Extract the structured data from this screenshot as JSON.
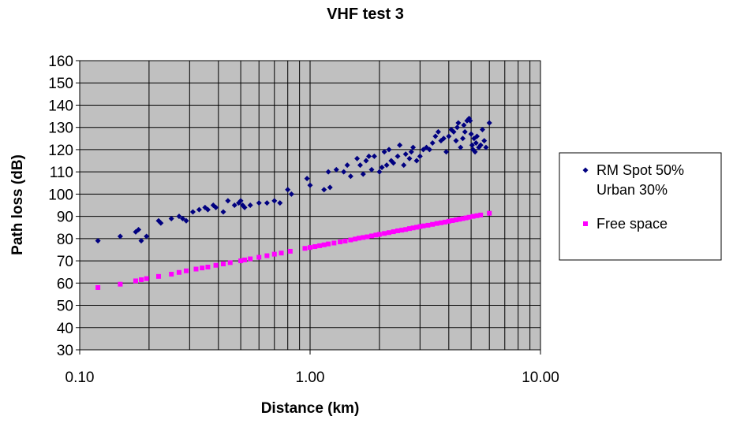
{
  "chart_data": {
    "type": "scatter",
    "title": "VHF test 3",
    "xlabel": "Distance (km)",
    "ylabel": "Path loss (dB)",
    "x_scale": "log",
    "xlim": [
      0.1,
      10
    ],
    "ylim": [
      30,
      160
    ],
    "x_ticks": [
      "0.10",
      "1.00",
      "10.00"
    ],
    "y_ticks": [
      "30",
      "40",
      "50",
      "60",
      "70",
      "80",
      "90",
      "100",
      "110",
      "120",
      "130",
      "140",
      "150",
      "160"
    ],
    "grid": true,
    "plot_background": "#c0c0c0",
    "legend_position": "right",
    "series": [
      {
        "name": "RM Spot 50% Urban 30%",
        "legend_lines": [
          "RM Spot 50%",
          "Urban 30%"
        ],
        "color": "#000080",
        "marker": "diamond",
        "points": [
          [
            0.12,
            79
          ],
          [
            0.15,
            81
          ],
          [
            0.175,
            83
          ],
          [
            0.18,
            84
          ],
          [
            0.185,
            79
          ],
          [
            0.195,
            81
          ],
          [
            0.22,
            88
          ],
          [
            0.225,
            87
          ],
          [
            0.25,
            89
          ],
          [
            0.27,
            90
          ],
          [
            0.28,
            89
          ],
          [
            0.29,
            88
          ],
          [
            0.31,
            92
          ],
          [
            0.33,
            93
          ],
          [
            0.35,
            94
          ],
          [
            0.36,
            93
          ],
          [
            0.38,
            95
          ],
          [
            0.39,
            94
          ],
          [
            0.42,
            92
          ],
          [
            0.44,
            97
          ],
          [
            0.47,
            95
          ],
          [
            0.49,
            96
          ],
          [
            0.5,
            97
          ],
          [
            0.51,
            95
          ],
          [
            0.52,
            94
          ],
          [
            0.55,
            95
          ],
          [
            0.6,
            96
          ],
          [
            0.65,
            96
          ],
          [
            0.7,
            97
          ],
          [
            0.74,
            96
          ],
          [
            0.8,
            102
          ],
          [
            0.83,
            100
          ],
          [
            0.97,
            107
          ],
          [
            1.0,
            104
          ],
          [
            1.15,
            102
          ],
          [
            1.2,
            110
          ],
          [
            1.22,
            103
          ],
          [
            1.3,
            111
          ],
          [
            1.4,
            110
          ],
          [
            1.45,
            113
          ],
          [
            1.5,
            108
          ],
          [
            1.6,
            116
          ],
          [
            1.65,
            113
          ],
          [
            1.7,
            109
          ],
          [
            1.75,
            115
          ],
          [
            1.8,
            117
          ],
          [
            1.85,
            111
          ],
          [
            1.9,
            117
          ],
          [
            2.0,
            110
          ],
          [
            2.05,
            112
          ],
          [
            2.1,
            119
          ],
          [
            2.15,
            113
          ],
          [
            2.2,
            120
          ],
          [
            2.25,
            115
          ],
          [
            2.3,
            114
          ],
          [
            2.4,
            117
          ],
          [
            2.45,
            122
          ],
          [
            2.55,
            113
          ],
          [
            2.6,
            118
          ],
          [
            2.7,
            116
          ],
          [
            2.75,
            119
          ],
          [
            2.8,
            121
          ],
          [
            2.9,
            115
          ],
          [
            3.0,
            117
          ],
          [
            3.1,
            120
          ],
          [
            3.2,
            121
          ],
          [
            3.3,
            120
          ],
          [
            3.4,
            123
          ],
          [
            3.5,
            126
          ],
          [
            3.6,
            128
          ],
          [
            3.7,
            124
          ],
          [
            3.8,
            125
          ],
          [
            3.9,
            119
          ],
          [
            4.0,
            126
          ],
          [
            4.1,
            129
          ],
          [
            4.2,
            128
          ],
          [
            4.3,
            124
          ],
          [
            4.35,
            130
          ],
          [
            4.4,
            132
          ],
          [
            4.5,
            121
          ],
          [
            4.6,
            125
          ],
          [
            4.65,
            131
          ],
          [
            4.7,
            128
          ],
          [
            4.8,
            133
          ],
          [
            4.9,
            134
          ],
          [
            4.95,
            133
          ],
          [
            5.0,
            127
          ],
          [
            5.05,
            122
          ],
          [
            5.1,
            120
          ],
          [
            5.15,
            125
          ],
          [
            5.2,
            119
          ],
          [
            5.25,
            123
          ],
          [
            5.3,
            126
          ],
          [
            5.4,
            121
          ],
          [
            5.5,
            122
          ],
          [
            5.6,
            129
          ],
          [
            5.7,
            124
          ],
          [
            5.8,
            121
          ],
          [
            6.0,
            132
          ]
        ]
      },
      {
        "name": "Free space",
        "legend_lines": [
          "Free space"
        ],
        "color": "#ff00ff",
        "marker": "square",
        "points": [
          [
            0.12,
            58
          ],
          [
            0.15,
            59.5
          ],
          [
            0.175,
            61
          ],
          [
            0.185,
            61.5
          ],
          [
            0.195,
            62
          ],
          [
            0.22,
            63
          ],
          [
            0.25,
            64
          ],
          [
            0.27,
            64.8
          ],
          [
            0.29,
            65.5
          ],
          [
            0.32,
            66.3
          ],
          [
            0.34,
            66.8
          ],
          [
            0.36,
            67.2
          ],
          [
            0.39,
            68
          ],
          [
            0.42,
            68.6
          ],
          [
            0.45,
            69.2
          ],
          [
            0.5,
            70
          ],
          [
            0.52,
            70.4
          ],
          [
            0.55,
            70.9
          ],
          [
            0.6,
            71.6
          ],
          [
            0.65,
            72.3
          ],
          [
            0.7,
            73
          ],
          [
            0.75,
            73.5
          ],
          [
            0.82,
            74.3
          ],
          [
            0.95,
            75.6
          ],
          [
            1.0,
            76
          ],
          [
            1.05,
            76.4
          ],
          [
            1.1,
            76.8
          ],
          [
            1.15,
            77.2
          ],
          [
            1.2,
            77.6
          ],
          [
            1.27,
            78
          ],
          [
            1.35,
            78.5
          ],
          [
            1.42,
            78.9
          ],
          [
            1.5,
            79.4
          ],
          [
            1.57,
            79.8
          ],
          [
            1.63,
            80.2
          ],
          [
            1.7,
            80.5
          ],
          [
            1.77,
            80.8
          ],
          [
            1.85,
            81.2
          ],
          [
            1.93,
            81.6
          ],
          [
            2.0,
            81.9
          ],
          [
            2.1,
            82.3
          ],
          [
            2.2,
            82.7
          ],
          [
            2.3,
            83.1
          ],
          [
            2.4,
            83.5
          ],
          [
            2.5,
            83.8
          ],
          [
            2.6,
            84.1
          ],
          [
            2.7,
            84.5
          ],
          [
            2.8,
            84.8
          ],
          [
            2.9,
            85.1
          ],
          [
            3.0,
            85.4
          ],
          [
            3.1,
            85.7
          ],
          [
            3.25,
            86
          ],
          [
            3.4,
            86.4
          ],
          [
            3.55,
            86.8
          ],
          [
            3.7,
            87.1
          ],
          [
            3.85,
            87.4
          ],
          [
            4.0,
            87.8
          ],
          [
            4.15,
            88.1
          ],
          [
            4.3,
            88.4
          ],
          [
            4.45,
            88.7
          ],
          [
            4.6,
            89
          ],
          [
            4.75,
            89.3
          ],
          [
            4.9,
            89.6
          ],
          [
            5.1,
            90
          ],
          [
            5.3,
            90.3
          ],
          [
            5.5,
            90.6
          ],
          [
            6.0,
            91.4
          ]
        ]
      }
    ]
  }
}
